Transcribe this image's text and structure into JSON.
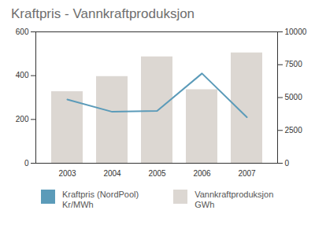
{
  "chart_data": {
    "type": "bar",
    "title": "Kraftpris - Vannkraftproduksjon",
    "categories": [
      "2003",
      "2004",
      "2005",
      "2006",
      "2007"
    ],
    "series": [
      {
        "name": "Kraftpris (NordPool)\nKr/MWh",
        "type": "line",
        "color": "#5b9bb9",
        "values": [
          291,
          235,
          239,
          410,
          210
        ]
      },
      {
        "name": "Vannkraftproduksjon\nGWh",
        "type": "bar",
        "axis": "y2",
        "color": "#dcd7d2",
        "values": [
          5450,
          6600,
          8100,
          5600,
          8400
        ]
      }
    ],
    "ylim": [
      0,
      600
    ],
    "yticks": [
      0,
      200,
      400,
      600
    ],
    "y2lim": [
      0,
      10000
    ],
    "y2ticks": [
      0,
      2500,
      5000,
      7500,
      10000
    ],
    "grid": false,
    "legend": "bottom"
  }
}
